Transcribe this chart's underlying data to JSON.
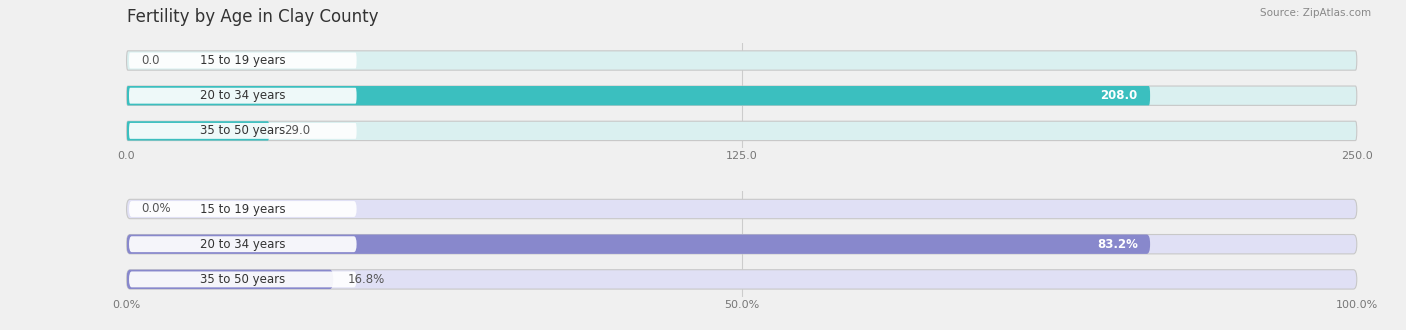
{
  "title": "Fertility by Age in Clay County",
  "source": "Source: ZipAtlas.com",
  "chart1": {
    "categories": [
      "15 to 19 years",
      "20 to 34 years",
      "35 to 50 years"
    ],
    "values": [
      0.0,
      208.0,
      29.0
    ],
    "xlim": [
      0,
      250.0
    ],
    "xticks": [
      0.0,
      125.0,
      250.0
    ],
    "xtick_labels": [
      "0.0",
      "125.0",
      "250.0"
    ],
    "bar_color": "#3bbfbf",
    "bar_bg_color": "#daf0f0",
    "label_bg_color": "#ffffff"
  },
  "chart2": {
    "categories": [
      "15 to 19 years",
      "20 to 34 years",
      "35 to 50 years"
    ],
    "values": [
      0.0,
      83.2,
      16.8
    ],
    "xlim": [
      0,
      100.0
    ],
    "xticks": [
      0.0,
      50.0,
      100.0
    ],
    "xtick_labels": [
      "0.0%",
      "50.0%",
      "100.0%"
    ],
    "bar_color": "#8888cc",
    "bar_bg_color": "#e0e0f5",
    "label_bg_color": "#ffffff"
  },
  "background_color": "#f0f0f0",
  "title_fontsize": 12,
  "label_fontsize": 8.5,
  "tick_fontsize": 8,
  "bar_height": 0.55,
  "n_bars": 3
}
